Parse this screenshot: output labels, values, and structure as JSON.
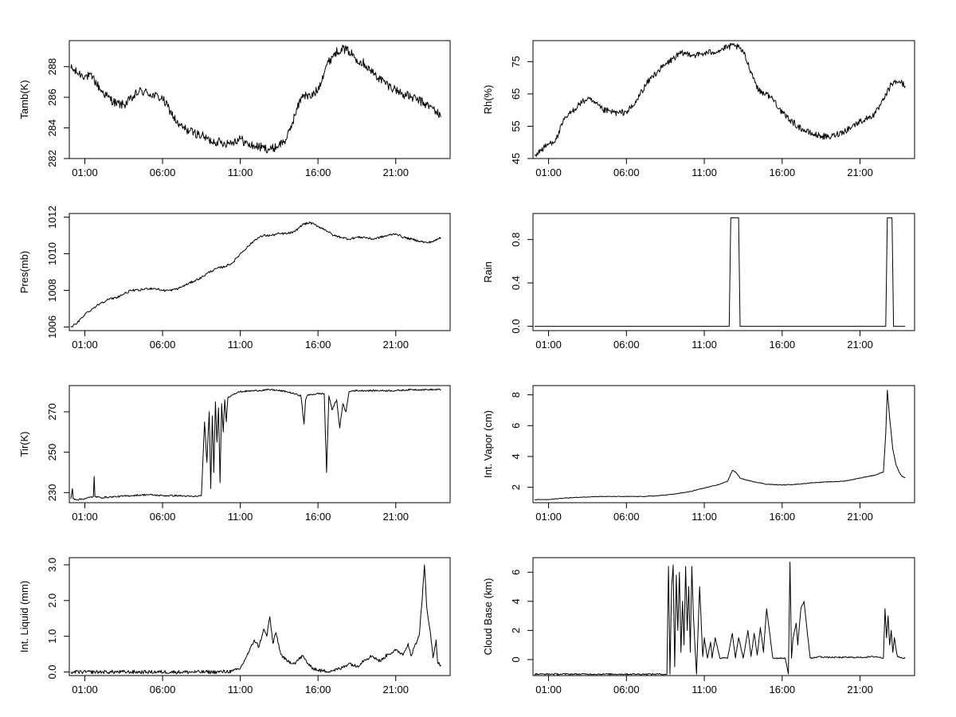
{
  "chart_data": [
    {
      "type": "line",
      "ylabel": "Tamb(K)",
      "xlim": [
        0,
        24.5
      ],
      "ylim": [
        282,
        289.7
      ],
      "xticks": [
        1,
        6,
        11,
        16,
        21
      ],
      "xtick_labels": [
        "01:00",
        "06:00",
        "11:00",
        "16:00",
        "21:00"
      ],
      "yticks": [
        282,
        284,
        286,
        288
      ],
      "ytick_labels": [
        "282",
        "284",
        "286",
        "288"
      ],
      "noise": 0.3,
      "x": [
        0.1,
        0.5,
        1.0,
        1.5,
        2.0,
        2.5,
        3.0,
        3.5,
        4.0,
        4.5,
        5.0,
        5.5,
        6.0,
        6.5,
        7.0,
        7.5,
        8.0,
        8.5,
        9.0,
        9.5,
        10.0,
        10.5,
        11.0,
        11.5,
        12.0,
        12.5,
        13.0,
        13.5,
        14.0,
        14.5,
        15.0,
        15.5,
        16.0,
        16.5,
        17.0,
        17.5,
        18.0,
        18.5,
        19.0,
        19.5,
        20.0,
        20.5,
        21.0,
        21.5,
        22.0,
        22.5,
        23.0,
        23.5,
        23.9
      ],
      "y": [
        287.9,
        287.6,
        287.4,
        287.3,
        286.5,
        286.0,
        285.6,
        285.5,
        285.9,
        286.4,
        286.3,
        286.1,
        285.9,
        285.1,
        284.2,
        283.9,
        283.7,
        283.5,
        283.2,
        283.1,
        283.0,
        283.1,
        283.3,
        282.9,
        282.8,
        282.7,
        282.6,
        282.9,
        283.3,
        284.8,
        286.2,
        286.0,
        286.5,
        288.0,
        288.8,
        289.2,
        289.0,
        288.5,
        288.2,
        287.6,
        287.2,
        286.8,
        286.5,
        286.2,
        286.0,
        285.8,
        285.5,
        285.2,
        284.7
      ]
    },
    {
      "type": "line",
      "ylabel": "Rh(%)",
      "xlim": [
        0,
        24.5
      ],
      "ylim": [
        45,
        81.5
      ],
      "xticks": [
        1,
        6,
        11,
        16,
        21
      ],
      "xtick_labels": [
        "01:00",
        "06:00",
        "11:00",
        "16:00",
        "21:00"
      ],
      "yticks": [
        45,
        55,
        65,
        75
      ],
      "ytick_labels": [
        "45",
        "55",
        "65",
        "75"
      ],
      "noise": 1.0,
      "x": [
        0.1,
        0.5,
        1.0,
        1.5,
        2.0,
        2.5,
        3.0,
        3.5,
        4.0,
        4.5,
        5.0,
        5.5,
        6.0,
        6.5,
        7.0,
        7.5,
        8.0,
        8.5,
        9.0,
        9.5,
        10.0,
        10.5,
        11.0,
        11.5,
        12.0,
        12.5,
        13.0,
        13.5,
        14.0,
        14.5,
        15.0,
        15.5,
        16.0,
        16.5,
        17.0,
        17.5,
        18.0,
        18.5,
        19.0,
        19.5,
        20.0,
        20.5,
        21.0,
        21.5,
        22.0,
        22.5,
        23.0,
        23.5,
        23.9
      ],
      "y": [
        46.0,
        47.5,
        49.5,
        51.0,
        57.0,
        59.5,
        62.0,
        63.5,
        62.0,
        60.0,
        59.5,
        59.0,
        59.5,
        61.5,
        66.0,
        69.5,
        72.0,
        74.0,
        76.0,
        77.5,
        77.5,
        77.0,
        77.5,
        78.0,
        78.5,
        79.5,
        80.0,
        78.0,
        72.0,
        66.0,
        65.0,
        63.0,
        59.0,
        57.0,
        55.0,
        53.5,
        52.5,
        52.0,
        51.5,
        52.5,
        53.5,
        55.0,
        56.5,
        57.5,
        59.0,
        63.0,
        68.0,
        69.0,
        67.5
      ]
    },
    {
      "type": "line",
      "ylabel": "Pres(mb)",
      "xlim": [
        0,
        24.5
      ],
      "ylim": [
        1005.8,
        1012.2
      ],
      "xticks": [
        1,
        6,
        11,
        16,
        21
      ],
      "xtick_labels": [
        "01:00",
        "06:00",
        "11:00",
        "16:00",
        "21:00"
      ],
      "yticks": [
        1006,
        1008,
        1010,
        1012
      ],
      "ytick_labels": [
        "1006",
        "1008",
        "1010",
        "1012"
      ],
      "noise": 0.06,
      "x": [
        0.1,
        0.5,
        1.0,
        1.5,
        2.0,
        2.5,
        3.0,
        3.5,
        4.0,
        4.5,
        5.0,
        5.5,
        6.0,
        6.5,
        7.0,
        7.5,
        8.0,
        8.5,
        9.0,
        9.5,
        10.0,
        10.5,
        11.0,
        11.5,
        12.0,
        12.5,
        13.0,
        13.5,
        14.0,
        14.5,
        15.0,
        15.5,
        16.0,
        16.5,
        17.0,
        17.5,
        18.0,
        18.5,
        19.0,
        19.5,
        20.0,
        20.5,
        21.0,
        21.5,
        22.0,
        22.5,
        23.0,
        23.5,
        23.9
      ],
      "y": [
        1006.0,
        1006.2,
        1006.7,
        1007.0,
        1007.3,
        1007.5,
        1007.6,
        1007.8,
        1008.0,
        1008.0,
        1008.1,
        1008.1,
        1008.0,
        1008.0,
        1008.1,
        1008.3,
        1008.5,
        1008.7,
        1009.0,
        1009.2,
        1009.3,
        1009.5,
        1010.0,
        1010.4,
        1010.8,
        1011.0,
        1011.0,
        1011.1,
        1011.1,
        1011.2,
        1011.6,
        1011.7,
        1011.5,
        1011.3,
        1011.0,
        1010.9,
        1010.8,
        1010.9,
        1010.9,
        1010.8,
        1010.9,
        1011.0,
        1011.1,
        1010.9,
        1010.8,
        1010.7,
        1010.6,
        1010.7,
        1010.9
      ]
    },
    {
      "type": "line",
      "ylabel": "Rain",
      "xlim": [
        0,
        24.5
      ],
      "ylim": [
        -0.04,
        1.04
      ],
      "xticks": [
        1,
        6,
        11,
        16,
        21
      ],
      "xtick_labels": [
        "01:00",
        "06:00",
        "11:00",
        "16:00",
        "21:00"
      ],
      "yticks": [
        0.0,
        0.4,
        0.8
      ],
      "ytick_labels": [
        "0.0",
        "0.4",
        "0.8"
      ],
      "noise": 0,
      "x": [
        0.1,
        12.6,
        12.7,
        13.2,
        13.3,
        22.65,
        22.75,
        23.05,
        23.15,
        23.9
      ],
      "y": [
        0,
        0,
        1,
        1,
        0,
        0,
        1,
        1,
        0,
        0
      ]
    },
    {
      "type": "line",
      "ylabel": "Tir(K)",
      "xlim": [
        0,
        24.5
      ],
      "ylim": [
        225,
        283
      ],
      "xticks": [
        1,
        6,
        11,
        16,
        21
      ],
      "xtick_labels": [
        "01:00",
        "06:00",
        "11:00",
        "16:00",
        "21:00"
      ],
      "yticks": [
        230,
        250,
        270
      ],
      "ytick_labels": [
        "230",
        "250",
        "270"
      ],
      "noise": 0.4,
      "x": [
        0.1,
        0.2,
        0.25,
        0.3,
        0.5,
        1.0,
        1.55,
        1.6,
        1.65,
        2.0,
        3.0,
        4.0,
        5.0,
        6.0,
        7.0,
        8.0,
        8.5,
        8.7,
        8.85,
        9.0,
        9.1,
        9.2,
        9.3,
        9.4,
        9.5,
        9.6,
        9.7,
        9.8,
        9.9,
        10.0,
        10.1,
        10.2,
        10.4,
        10.6,
        11.0,
        12.0,
        13.0,
        14.0,
        14.9,
        15.1,
        15.2,
        15.3,
        15.5,
        16.0,
        16.4,
        16.55,
        16.7,
        16.9,
        17.2,
        17.4,
        17.6,
        17.8,
        18.0,
        18.3,
        19.0,
        20.0,
        21.0,
        22.0,
        23.0,
        23.9
      ],
      "y": [
        227,
        232,
        227,
        227,
        226.5,
        227,
        228,
        238,
        228,
        227.5,
        228,
        228.5,
        229,
        228.5,
        228.5,
        228,
        228.5,
        265,
        245,
        270,
        232,
        268,
        240,
        275,
        255,
        272,
        235,
        274,
        260,
        276,
        265,
        277,
        278,
        279,
        280,
        280.5,
        281,
        280,
        278,
        264,
        276,
        278,
        278.5,
        279,
        279,
        240,
        278,
        271,
        276,
        262,
        274,
        270,
        280,
        280.5,
        280.5,
        280.5,
        280.5,
        281,
        281,
        281
      ]
    },
    {
      "type": "line",
      "ylabel": "Int. Vapor (cm)",
      "xlim": [
        0,
        24.5
      ],
      "ylim": [
        1,
        8.6
      ],
      "xticks": [
        1,
        6,
        11,
        16,
        21
      ],
      "xtick_labels": [
        "01:00",
        "06:00",
        "11:00",
        "16:00",
        "21:00"
      ],
      "yticks": [
        2,
        4,
        6,
        8
      ],
      "ytick_labels": [
        "2",
        "4",
        "6",
        "8"
      ],
      "noise": 0.02,
      "x": [
        0.1,
        1.0,
        2.0,
        3.0,
        4.0,
        5.0,
        6.0,
        7.0,
        8.0,
        9.0,
        10.0,
        11.0,
        12.0,
        12.5,
        12.8,
        13.0,
        13.3,
        13.6,
        14.0,
        15.0,
        16.0,
        17.0,
        18.0,
        19.0,
        20.0,
        21.0,
        22.0,
        22.5,
        22.65,
        22.75,
        22.9,
        23.1,
        23.3,
        23.5,
        23.7,
        23.9
      ],
      "y": [
        1.2,
        1.2,
        1.3,
        1.35,
        1.4,
        1.4,
        1.4,
        1.4,
        1.45,
        1.55,
        1.7,
        1.95,
        2.2,
        2.4,
        3.1,
        3.0,
        2.6,
        2.5,
        2.4,
        2.2,
        2.15,
        2.2,
        2.3,
        2.35,
        2.4,
        2.6,
        2.8,
        3.0,
        5.5,
        8.3,
        6.5,
        4.5,
        3.5,
        3.0,
        2.7,
        2.6
      ]
    },
    {
      "type": "line",
      "ylabel": "Int. Liquid (mm)",
      "xlim": [
        0,
        24.5
      ],
      "ylim": [
        -0.1,
        3.2
      ],
      "xticks": [
        1,
        6,
        11,
        16,
        21
      ],
      "xtick_labels": [
        "01:00",
        "06:00",
        "11:00",
        "16:00",
        "21:00"
      ],
      "yticks": [
        0.0,
        1.0,
        2.0,
        3.0
      ],
      "ytick_labels": [
        "0.0",
        "1.0",
        "2.0",
        "3.0"
      ],
      "noise": 0.05,
      "x": [
        0.1,
        5.0,
        9.5,
        10.5,
        11.0,
        11.3,
        11.6,
        11.9,
        12.2,
        12.5,
        12.7,
        12.9,
        13.1,
        13.3,
        13.6,
        14.0,
        14.5,
        15.0,
        15.5,
        16.0,
        16.5,
        17.0,
        17.5,
        18.0,
        18.5,
        19.0,
        19.5,
        20.0,
        20.5,
        21.0,
        21.5,
        21.8,
        22.0,
        22.2,
        22.5,
        22.7,
        22.85,
        23.0,
        23.2,
        23.4,
        23.6,
        23.7,
        23.9
      ],
      "y": [
        0.0,
        0.0,
        0.0,
        0.02,
        0.1,
        0.35,
        0.6,
        0.9,
        0.7,
        1.2,
        1.0,
        1.55,
        0.8,
        1.1,
        0.5,
        0.3,
        0.25,
        0.45,
        0.15,
        0.05,
        0.02,
        0.05,
        0.1,
        0.25,
        0.15,
        0.35,
        0.45,
        0.3,
        0.5,
        0.6,
        0.5,
        0.8,
        0.45,
        0.7,
        1.0,
        2.0,
        3.0,
        1.8,
        1.2,
        0.4,
        0.9,
        0.25,
        0.2
      ]
    },
    {
      "type": "line",
      "ylabel": "Cloud Base (km)",
      "xlim": [
        0,
        24.5
      ],
      "ylim": [
        -1.1,
        7
      ],
      "xticks": [
        1,
        6,
        11,
        16,
        21
      ],
      "xtick_labels": [
        "01:00",
        "06:00",
        "11:00",
        "16:00",
        "21:00"
      ],
      "yticks": [
        0,
        2,
        4,
        6
      ],
      "ytick_labels": [
        "0",
        "2",
        "4",
        "6"
      ],
      "noise": 0.05,
      "x": [
        0.1,
        8.6,
        8.7,
        8.8,
        8.9,
        9.0,
        9.1,
        9.2,
        9.3,
        9.4,
        9.5,
        9.6,
        9.7,
        9.8,
        9.9,
        10.0,
        10.1,
        10.2,
        10.3,
        10.5,
        10.7,
        10.9,
        11.0,
        11.2,
        11.4,
        11.5,
        11.7,
        12.0,
        12.5,
        12.8,
        13.0,
        13.2,
        13.5,
        13.8,
        14.0,
        14.2,
        14.4,
        14.6,
        14.8,
        15.0,
        15.2,
        15.4,
        15.6,
        15.8,
        16.0,
        16.2,
        16.4,
        16.5,
        16.6,
        16.7,
        16.9,
        17.0,
        17.2,
        17.4,
        17.6,
        17.8,
        18.0,
        18.3,
        19.0,
        20.0,
        21.0,
        22.0,
        22.5,
        22.6,
        22.7,
        22.8,
        22.9,
        23.0,
        23.1,
        23.2,
        23.4,
        23.7,
        23.9
      ],
      "y": [
        -1.0,
        -1.0,
        6.4,
        -1.0,
        5.0,
        6.5,
        -0.5,
        5.8,
        2.0,
        6.0,
        0.5,
        4.0,
        1.0,
        6.4,
        2.0,
        5.0,
        0.5,
        6.4,
        3.0,
        -1.0,
        5.0,
        0.2,
        1.5,
        0.1,
        1.2,
        0.1,
        1.5,
        0.1,
        0.1,
        1.8,
        0.1,
        1.5,
        0.1,
        2.0,
        0.2,
        1.8,
        0.3,
        2.2,
        0.5,
        3.5,
        1.8,
        0.1,
        0.1,
        0.1,
        0.1,
        0.1,
        -1.0,
        6.7,
        0.1,
        1.5,
        2.5,
        1.0,
        3.5,
        4.0,
        2.0,
        0.1,
        0.1,
        0.2,
        0.15,
        0.15,
        0.15,
        0.2,
        0.1,
        3.5,
        1.5,
        3.0,
        1.0,
        2.0,
        0.5,
        1.5,
        0.2,
        0.1,
        0.1
      ]
    }
  ]
}
